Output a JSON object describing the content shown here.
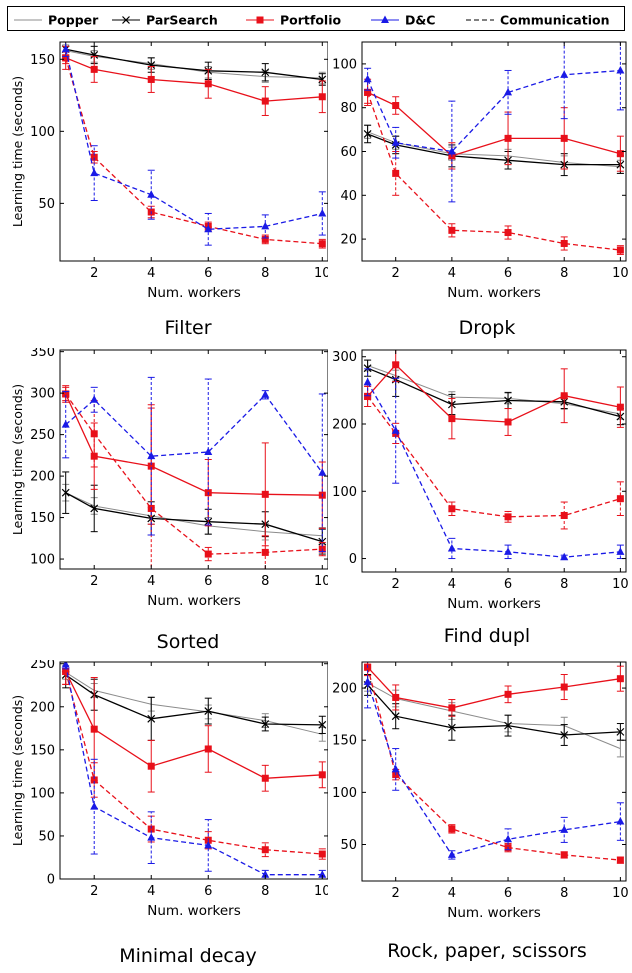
{
  "legend": {
    "popper": "Popper",
    "parsearch": "ParSearch",
    "portfolio": "Portfolio",
    "dc": "D&C",
    "communication": "Communication"
  },
  "styles": {
    "popper": {
      "color": "#8c8c8c",
      "marker": "none",
      "dashed": false
    },
    "parsearch": {
      "color": "#000000",
      "marker": "x",
      "dashed": false
    },
    "portfolio": {
      "color": "#e8101a",
      "marker": "square",
      "dashed": false
    },
    "portfolio_comm": {
      "color": "#e8101a",
      "marker": "square",
      "dashed": true
    },
    "dc_comm": {
      "color": "#1a1ae6",
      "marker": "triangle",
      "dashed": true
    }
  },
  "chart_data": [
    {
      "type": "line",
      "title": "Filter",
      "xlabel": "Num. workers",
      "ylabel": "Learning time (seconds)",
      "x": [
        1,
        2,
        4,
        6,
        8,
        10
      ],
      "xticks": [
        2,
        4,
        6,
        8,
        10
      ],
      "xlim": [
        0.8,
        10.2
      ],
      "yticks": [
        50,
        100,
        150
      ],
      "ylim": [
        10,
        162
      ],
      "series": [
        {
          "key": "popper",
          "values": [
            156,
            152,
            147,
            141,
            138,
            137
          ],
          "err": [
            4,
            4,
            4,
            4,
            4,
            4
          ]
        },
        {
          "key": "parsearch",
          "values": [
            157,
            153,
            146,
            142,
            141,
            136
          ],
          "err": [
            5,
            6,
            5,
            6,
            6,
            4
          ]
        },
        {
          "key": "portfolio",
          "values": [
            151,
            143,
            136,
            133,
            121,
            124
          ],
          "err": [
            8,
            9,
            9,
            10,
            10,
            11
          ]
        },
        {
          "key": "portfolio_comm",
          "values": [
            151,
            82,
            44,
            34,
            25,
            22
          ],
          "err": [
            4,
            4,
            4,
            3,
            3,
            3
          ]
        },
        {
          "key": "dc_comm",
          "values": [
            157,
            71,
            56,
            32,
            34,
            43
          ],
          "err": [
            5,
            19,
            17,
            11,
            8,
            15
          ]
        }
      ]
    },
    {
      "type": "line",
      "title": "Dropk",
      "xlabel": "Num. workers",
      "ylabel": "",
      "x": [
        1,
        2,
        4,
        6,
        8,
        10
      ],
      "xticks": [
        2,
        4,
        6,
        8,
        10
      ],
      "xlim": [
        0.8,
        10.2
      ],
      "yticks": [
        20,
        40,
        60,
        80,
        100
      ],
      "ylim": [
        10,
        110
      ],
      "series": [
        {
          "key": "popper",
          "values": [
            69,
            64,
            59,
            58,
            55,
            53
          ],
          "err": [
            3,
            3,
            3,
            3,
            3,
            3
          ]
        },
        {
          "key": "parsearch",
          "values": [
            68,
            63,
            58,
            56,
            54,
            54
          ],
          "err": [
            4,
            4,
            5,
            4,
            5,
            4
          ]
        },
        {
          "key": "portfolio",
          "values": [
            87,
            81,
            58,
            66,
            66,
            59
          ],
          "err": [
            6,
            4,
            6,
            12,
            14,
            8
          ]
        },
        {
          "key": "portfolio_comm",
          "values": [
            87,
            50,
            24,
            23,
            18,
            15
          ],
          "err": [
            5,
            10,
            3,
            3,
            3,
            2
          ]
        },
        {
          "key": "dc_comm",
          "values": [
            93,
            64,
            60,
            87,
            95,
            97
          ],
          "err": [
            5,
            7,
            23,
            10,
            20,
            18
          ]
        }
      ]
    },
    {
      "type": "line",
      "title": "Sorted",
      "xlabel": "Num. workers",
      "ylabel": "Learning time (seconds)",
      "x": [
        1,
        2,
        4,
        6,
        8,
        10
      ],
      "xticks": [
        2,
        4,
        6,
        8,
        10
      ],
      "xlim": [
        0.8,
        10.2
      ],
      "yticks": [
        100,
        150,
        200,
        250,
        300,
        350
      ],
      "ylim": [
        88,
        352
      ],
      "series": [
        {
          "key": "popper",
          "values": [
            180,
            164,
            152,
            140,
            133,
            128
          ],
          "err": [
            10,
            10,
            10,
            10,
            10,
            10
          ]
        },
        {
          "key": "parsearch",
          "values": [
            180,
            161,
            149,
            145,
            142,
            121
          ],
          "err": [
            25,
            28,
            20,
            15,
            15,
            15
          ]
        },
        {
          "key": "portfolio",
          "values": [
            299,
            224,
            212,
            180,
            178,
            177
          ],
          "err": [
            10,
            40,
            70,
            40,
            62,
            40
          ]
        },
        {
          "key": "portfolio_comm",
          "values": [
            299,
            251,
            161,
            106,
            108,
            112
          ],
          "err": [
            8,
            40,
            125,
            8,
            20,
            8
          ]
        },
        {
          "key": "dc_comm",
          "values": [
            262,
            292,
            224,
            229,
            298,
            204
          ],
          "err": [
            40,
            15,
            95,
            88,
            5,
            95
          ]
        }
      ]
    },
    {
      "type": "line",
      "title": "Find dupl",
      "xlabel": "Num. workers",
      "ylabel": "",
      "x": [
        1,
        2,
        4,
        6,
        8,
        10
      ],
      "xticks": [
        2,
        4,
        6,
        8,
        10
      ],
      "xlim": [
        0.8,
        10.2
      ],
      "yticks": [
        0,
        100,
        200,
        300
      ],
      "ylim": [
        -20,
        310
      ],
      "series": [
        {
          "key": "popper",
          "values": [
            287,
            272,
            240,
            238,
            230,
            215
          ],
          "err": [
            8,
            8,
            8,
            8,
            8,
            8
          ]
        },
        {
          "key": "parsearch",
          "values": [
            283,
            266,
            229,
            235,
            233,
            211
          ],
          "err": [
            12,
            25,
            15,
            12,
            10,
            12
          ]
        },
        {
          "key": "portfolio",
          "values": [
            241,
            288,
            208,
            203,
            242,
            225
          ],
          "err": [
            15,
            25,
            30,
            20,
            40,
            30
          ]
        },
        {
          "key": "portfolio_comm",
          "values": [
            241,
            186,
            74,
            62,
            64,
            89
          ],
          "err": [
            15,
            15,
            10,
            8,
            20,
            25
          ]
        },
        {
          "key": "dc_comm",
          "values": [
            262,
            190,
            15,
            10,
            2,
            10
          ],
          "err": [
            20,
            78,
            15,
            10,
            3,
            10
          ]
        }
      ]
    },
    {
      "type": "line",
      "title": "Minimal decay",
      "xlabel": "Num. workers",
      "ylabel": "Learning time (seconds)",
      "x": [
        1,
        2,
        4,
        6,
        8,
        10
      ],
      "xticks": [
        2,
        4,
        6,
        8,
        10
      ],
      "xlim": [
        0.8,
        10.2
      ],
      "yticks": [
        0,
        50,
        100,
        150,
        200,
        250
      ],
      "ylim": [
        0,
        252
      ],
      "series": [
        {
          "key": "popper",
          "values": [
            240,
            219,
            203,
            194,
            184,
            168
          ],
          "err": [
            8,
            8,
            8,
            8,
            8,
            8
          ]
        },
        {
          "key": "parsearch",
          "values": [
            237,
            214,
            186,
            195,
            180,
            179
          ],
          "err": [
            15,
            18,
            25,
            15,
            8,
            10
          ]
        },
        {
          "key": "portfolio",
          "values": [
            241,
            174,
            131,
            151,
            117,
            121
          ],
          "err": [
            15,
            60,
            30,
            27,
            15,
            15
          ]
        },
        {
          "key": "portfolio_comm",
          "values": [
            241,
            115,
            58,
            45,
            34,
            29
          ],
          "err": [
            15,
            20,
            15,
            10,
            8,
            6
          ]
        },
        {
          "key": "dc_comm",
          "values": [
            249,
            84,
            48,
            39,
            5,
            5
          ],
          "err": [
            5,
            55,
            30,
            30,
            5,
            5
          ]
        }
      ]
    },
    {
      "type": "line",
      "title": "Rock, paper, scissors",
      "xlabel": "Num. workers",
      "ylabel": "",
      "x": [
        1,
        2,
        4,
        6,
        8,
        10
      ],
      "xticks": [
        2,
        4,
        6,
        8,
        10
      ],
      "xlim": [
        0.8,
        10.2
      ],
      "yticks": [
        50,
        100,
        150,
        200
      ],
      "ylim": [
        15,
        225
      ],
      "series": [
        {
          "key": "popper",
          "values": [
            205,
            190,
            178,
            166,
            164,
            142
          ],
          "err": [
            8,
            8,
            8,
            8,
            8,
            8
          ]
        },
        {
          "key": "parsearch",
          "values": [
            203,
            173,
            162,
            164,
            155,
            158
          ],
          "err": [
            10,
            12,
            12,
            10,
            10,
            8
          ]
        },
        {
          "key": "portfolio",
          "values": [
            220,
            191,
            181,
            194,
            201,
            209
          ],
          "err": [
            8,
            12,
            8,
            8,
            12,
            12
          ]
        },
        {
          "key": "portfolio_comm",
          "values": [
            220,
            117,
            65,
            47,
            40,
            35
          ],
          "err": [
            8,
            5,
            4,
            4,
            3,
            3
          ]
        },
        {
          "key": "dc_comm",
          "values": [
            206,
            122,
            40,
            55,
            64,
            72
          ],
          "err": [
            25,
            20,
            4,
            10,
            12,
            18
          ]
        }
      ]
    }
  ]
}
